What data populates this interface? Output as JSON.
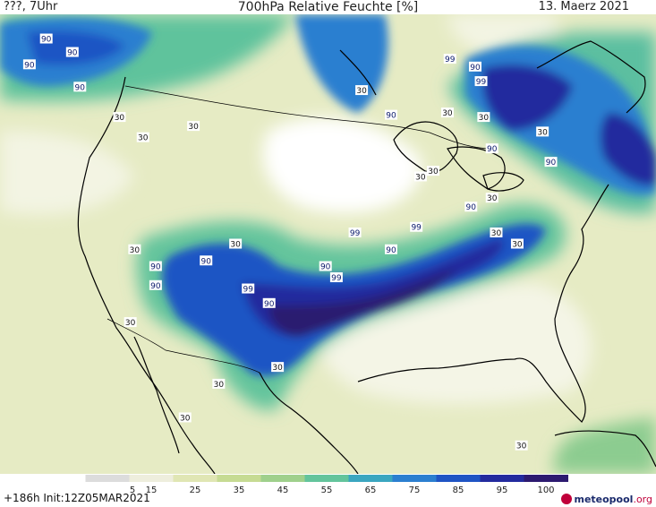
{
  "header": {
    "left": "???, 7Uhr",
    "title": "700hPa Relative Feuchte [%]",
    "date": "13. Maerz 2021"
  },
  "footer": {
    "run": "+186h  Init:12Z05MAR2021",
    "logo_main": "meteopool",
    "logo_suffix": ".org"
  },
  "colorbar": {
    "ticks": [
      "5",
      "15",
      "25",
      "35",
      "45",
      "55",
      "65",
      "75",
      "85",
      "95",
      "100"
    ],
    "colors": [
      "#dcdcdc",
      "#eeeedd",
      "#e0e6b4",
      "#c6db93",
      "#9fd08c",
      "#63c49c",
      "#3aa6c0",
      "#2b7fd0",
      "#1f54c4",
      "#232a9e",
      "#2c1a70"
    ]
  },
  "map_labels": [
    {
      "text": "90",
      "lon": -129.5,
      "lat": 52.5
    },
    {
      "text": "90",
      "lon": -127.5,
      "lat": 54.8
    },
    {
      "text": "90",
      "lon": -124.4,
      "lat": 53.6
    },
    {
      "text": "90",
      "lon": -123.5,
      "lat": 50.5
    },
    {
      "text": "30",
      "lon": -118.8,
      "lat": 47.8
    },
    {
      "text": "30",
      "lon": -116.0,
      "lat": 46.0
    },
    {
      "text": "30",
      "lon": -110.0,
      "lat": 47.0
    },
    {
      "text": "30",
      "lon": -90.0,
      "lat": 50.2
    },
    {
      "text": "90",
      "lon": -86.5,
      "lat": 48.0
    },
    {
      "text": "99",
      "lon": -79.5,
      "lat": 53.0
    },
    {
      "text": "90",
      "lon": -76.5,
      "lat": 52.3
    },
    {
      "text": "99",
      "lon": -75.8,
      "lat": 51.0
    },
    {
      "text": "30",
      "lon": -79.8,
      "lat": 48.2
    },
    {
      "text": "30",
      "lon": -75.5,
      "lat": 47.8
    },
    {
      "text": "30",
      "lon": -68.5,
      "lat": 46.5
    },
    {
      "text": "90",
      "lon": -74.5,
      "lat": 45.0
    },
    {
      "text": "90",
      "lon": -67.5,
      "lat": 43.8
    },
    {
      "text": "30",
      "lon": -81.5,
      "lat": 43.0
    },
    {
      "text": "30",
      "lon": -83.0,
      "lat": 42.5
    },
    {
      "text": "30",
      "lon": -74.5,
      "lat": 40.6
    },
    {
      "text": "90",
      "lon": -77.0,
      "lat": 39.8
    },
    {
      "text": "30",
      "lon": -74.0,
      "lat": 37.5
    },
    {
      "text": "30",
      "lon": -71.5,
      "lat": 36.5
    },
    {
      "text": "30",
      "lon": -117.0,
      "lat": 36.0
    },
    {
      "text": "90",
      "lon": -114.5,
      "lat": 34.5
    },
    {
      "text": "90",
      "lon": -114.5,
      "lat": 32.8
    },
    {
      "text": "90",
      "lon": -108.5,
      "lat": 35.0
    },
    {
      "text": "30",
      "lon": -105.0,
      "lat": 36.5
    },
    {
      "text": "99",
      "lon": -90.8,
      "lat": 37.5
    },
    {
      "text": "99",
      "lon": -83.5,
      "lat": 38.0
    },
    {
      "text": "90",
      "lon": -86.5,
      "lat": 36.0
    },
    {
      "text": "90",
      "lon": -94.3,
      "lat": 34.5
    },
    {
      "text": "99",
      "lon": -93.0,
      "lat": 33.5
    },
    {
      "text": "99",
      "lon": -103.5,
      "lat": 32.5
    },
    {
      "text": "90",
      "lon": -101.0,
      "lat": 31.2
    },
    {
      "text": "30",
      "lon": -117.5,
      "lat": 29.5
    },
    {
      "text": "30",
      "lon": -100.0,
      "lat": 25.5
    },
    {
      "text": "30",
      "lon": -107.0,
      "lat": 24.0
    },
    {
      "text": "30",
      "lon": -111.0,
      "lat": 21.0
    },
    {
      "text": "30",
      "lon": -71.0,
      "lat": 18.5
    }
  ]
}
